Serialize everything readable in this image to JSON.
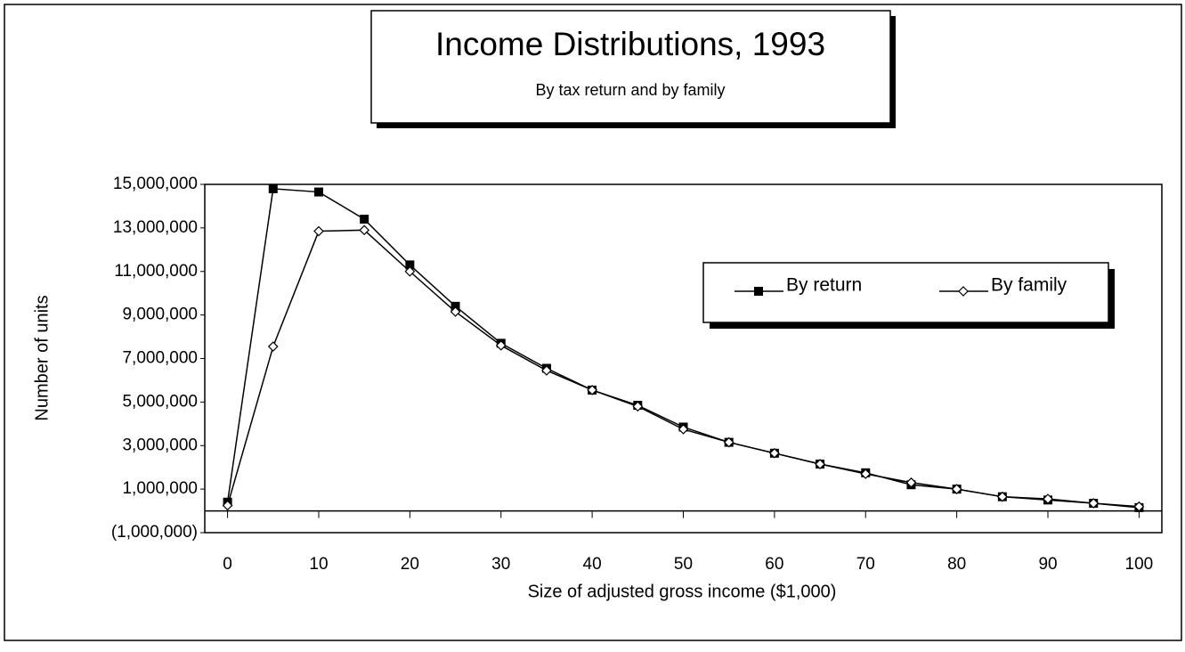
{
  "chart_data": {
    "type": "line",
    "title": "Income Distributions, 1993",
    "subtitle": "By tax return and by family",
    "xlabel": "Size of adjusted gross income ($1,000)",
    "ylabel": "Number of units",
    "x": [
      0,
      5,
      10,
      15,
      20,
      25,
      30,
      35,
      40,
      45,
      50,
      55,
      60,
      65,
      70,
      75,
      80,
      85,
      90,
      95,
      100
    ],
    "series": [
      {
        "name": "By return",
        "color": "#000000",
        "marker": "square",
        "values": [
          400000,
          14800000,
          14650000,
          13400000,
          11300000,
          9400000,
          7700000,
          6550000,
          5550000,
          4850000,
          3850000,
          3150000,
          2650000,
          2150000,
          1750000,
          1200000,
          1000000,
          650000,
          500000,
          350000,
          150000
        ]
      },
      {
        "name": "By family",
        "color": "#000000",
        "marker": "diamond",
        "values": [
          250000,
          7550000,
          12850000,
          12900000,
          11000000,
          9150000,
          7600000,
          6450000,
          5550000,
          4800000,
          3750000,
          3150000,
          2650000,
          2150000,
          1700000,
          1300000,
          1000000,
          650000,
          550000,
          350000,
          200000
        ]
      }
    ],
    "xlim": [
      -2.5,
      102.5
    ],
    "xticks": [
      0,
      10,
      20,
      30,
      40,
      50,
      60,
      70,
      80,
      90,
      100
    ],
    "ylim": [
      -1000000,
      15000000
    ],
    "yticks": [
      {
        "value": -1000000,
        "label": "(1,000,000)"
      },
      {
        "value": 1000000,
        "label": "1,000,000"
      },
      {
        "value": 3000000,
        "label": "3,000,000"
      },
      {
        "value": 5000000,
        "label": "5,000,000"
      },
      {
        "value": 7000000,
        "label": "7,000,000"
      },
      {
        "value": 9000000,
        "label": "9,000,000"
      },
      {
        "value": 11000000,
        "label": "11,000,000"
      },
      {
        "value": 13000000,
        "label": "13,000,000"
      },
      {
        "value": 15000000,
        "label": "15,000,000"
      }
    ],
    "grid": false,
    "legend": "upper right"
  }
}
